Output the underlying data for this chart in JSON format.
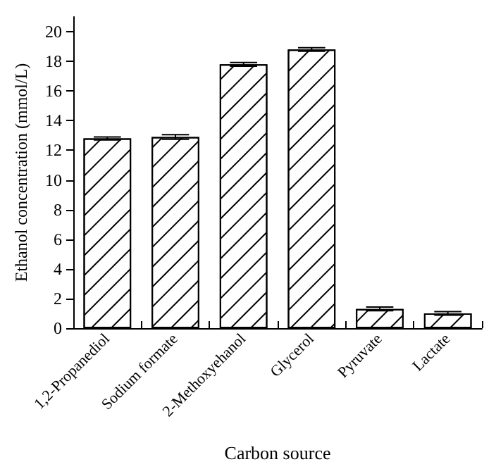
{
  "chart_data": {
    "type": "bar",
    "xlabel": "Carbon source",
    "ylabel": "Ethanol concentration (mmol/L)",
    "categories": [
      "1,2-Propanediol",
      "Sodium formate",
      "2-Methoxyehanol",
      "Glycerol",
      "Pyruvate",
      "Lactate"
    ],
    "values": [
      12.8,
      12.9,
      17.8,
      18.8,
      1.3,
      1.0
    ],
    "errors": [
      0.1,
      0.15,
      0.12,
      0.12,
      0.12,
      0.12
    ],
    "color": "#ffffff",
    "ylim": [
      0,
      21
    ],
    "yticks": [
      0,
      2,
      4,
      6,
      8,
      10,
      12,
      14,
      16,
      18,
      20
    ],
    "grid": false
  }
}
